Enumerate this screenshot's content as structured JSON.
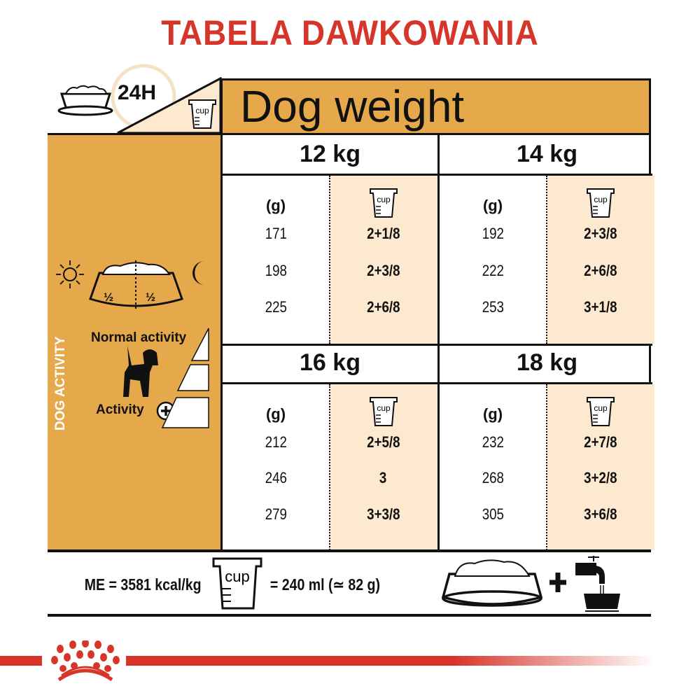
{
  "title": "TABELA DAWKOWANIA",
  "header": {
    "period": "24H",
    "dog_weight_label": "Dog weight",
    "cup_label": "cup"
  },
  "side_panel": {
    "half_left": "½",
    "half_right": "½",
    "normal_activity": "Normal activity",
    "activity": "Activity",
    "dog_activity": "DOG ACTIVITY"
  },
  "table": {
    "grams_header": "(g)",
    "blocks": [
      {
        "weight": "12 kg",
        "rows": [
          {
            "g": "171",
            "cups": "2+1/8"
          },
          {
            "g": "198",
            "cups": "2+3/8"
          },
          {
            "g": "225",
            "cups": "2+6/8"
          }
        ]
      },
      {
        "weight": "14 kg",
        "rows": [
          {
            "g": "192",
            "cups": "2+3/8"
          },
          {
            "g": "222",
            "cups": "2+6/8"
          },
          {
            "g": "253",
            "cups": "3+1/8"
          }
        ]
      },
      {
        "weight": "16 kg",
        "rows": [
          {
            "g": "212",
            "cups": "2+5/8"
          },
          {
            "g": "246",
            "cups": "3"
          },
          {
            "g": "279",
            "cups": "3+3/8"
          }
        ]
      },
      {
        "weight": "18 kg",
        "rows": [
          {
            "g": "232",
            "cups": "2+7/8"
          },
          {
            "g": "268",
            "cups": "3+2/8"
          },
          {
            "g": "305",
            "cups": "3+6/8"
          }
        ]
      }
    ]
  },
  "footer": {
    "energy": "ME = 3581 kcal/kg",
    "cup_equivalence": "= 240 ml (≃ 82 g)"
  },
  "colors": {
    "accent_red": "#d8352a",
    "orange": "#e5a84a",
    "beige": "#fce9cf"
  }
}
